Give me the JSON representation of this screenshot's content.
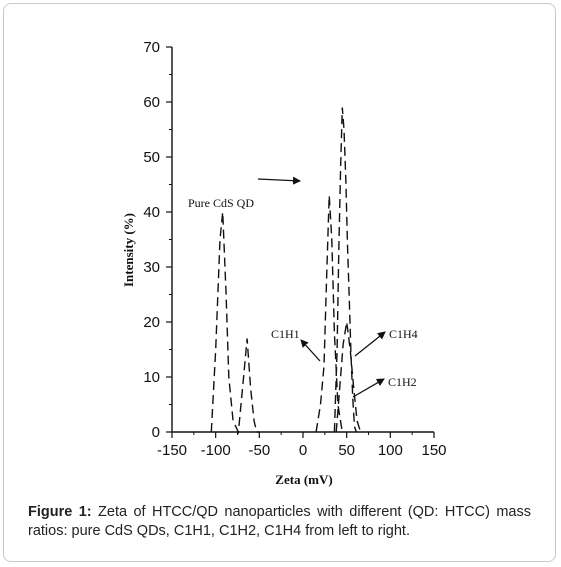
{
  "chart_data": {
    "type": "line",
    "xlabel": "Zeta (mV)",
    "ylabel": "Intensity (%)",
    "xlim": [
      -150,
      150
    ],
    "ylim": [
      0,
      70
    ],
    "xticks": [
      -150,
      -100,
      -50,
      0,
      50,
      100,
      150
    ],
    "yticks": [
      0,
      10,
      20,
      30,
      40,
      50,
      60,
      70
    ],
    "grid": false,
    "series": [
      {
        "name": "Pure CdS QD",
        "x": [
          -105,
          -100,
          -95,
          -92,
          -88,
          -85,
          -80,
          -74,
          -68,
          -64,
          -60,
          -56,
          -53,
          -50
        ],
        "y": [
          0,
          15,
          35,
          40,
          25,
          10,
          2,
          0,
          10,
          17,
          8,
          2,
          0,
          0
        ]
      },
      {
        "name": "C1H1",
        "x": [
          15,
          20,
          24,
          27,
          30,
          33,
          36,
          40,
          45
        ],
        "y": [
          0,
          5,
          12,
          28,
          43,
          35,
          18,
          5,
          0
        ]
      },
      {
        "name": "C1H2",
        "x": [
          38,
          42,
          46,
          50,
          54,
          58,
          62,
          66
        ],
        "y": [
          0,
          8,
          16,
          20,
          15,
          8,
          2,
          0
        ]
      },
      {
        "name": "C1H4",
        "x": [
          36,
          39,
          41,
          43,
          45,
          47,
          49,
          51,
          53,
          55,
          57,
          59,
          61
        ],
        "y": [
          0,
          15,
          33,
          48,
          59,
          55,
          46,
          34,
          24,
          14,
          6,
          1,
          0
        ]
      }
    ],
    "annotations": {
      "pure": "Pure CdS QD",
      "c1h1": "C1H1",
      "c1h2": "C1H2",
      "c1h4": "C1H4"
    }
  },
  "caption": {
    "label": "Figure 1:",
    "text": " Zeta of HTCC/QD nanoparticles with different (QD: HTCC) mass ratios: pure CdS QDs, C1H1, C1H2, C1H4 from left to right."
  }
}
